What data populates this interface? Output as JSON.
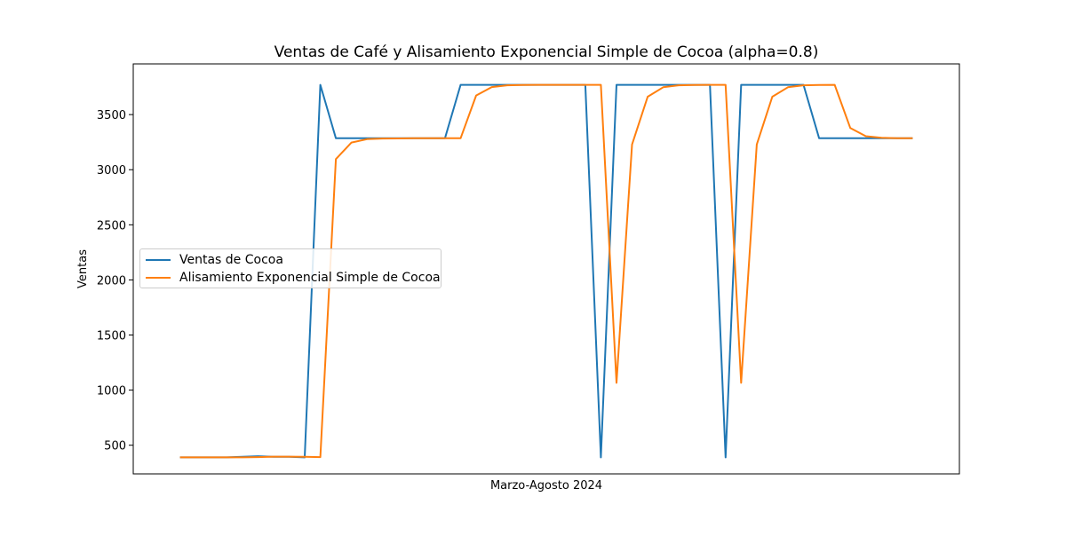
{
  "chart_data": {
    "type": "line",
    "title": "Ventas de Café y Alisamiento Exponencial Simple de Cocoa (alpha=0.8)",
    "xlabel": "Marzo-Agosto 2024",
    "ylabel": "Ventas",
    "x": [
      1,
      2,
      3,
      4,
      5,
      6,
      7,
      8,
      9,
      10,
      11,
      12,
      13,
      14,
      15,
      16,
      17,
      18,
      19,
      20,
      21,
      22,
      23,
      24,
      25,
      26,
      27,
      28,
      29,
      30,
      31,
      32,
      33,
      34,
      35,
      36,
      37,
      38,
      39,
      40,
      41,
      42,
      43,
      44,
      45,
      46,
      47,
      48
    ],
    "xlim": [
      -2,
      51
    ],
    "ylim": [
      240,
      3960
    ],
    "yticks": [
      500,
      1000,
      1500,
      2000,
      2500,
      3000,
      3500
    ],
    "grid": false,
    "legend_position": "center-left",
    "series": [
      {
        "name": "Ventas de Cocoa",
        "color": "#1f77b4",
        "values": [
          390,
          390,
          390,
          390,
          395,
          400,
          395,
          395,
          390,
          3770,
          3285,
          3285,
          3285,
          3285,
          3285,
          3285,
          3285,
          3285,
          3770,
          3770,
          3770,
          3770,
          3770,
          3770,
          3770,
          3770,
          3770,
          390,
          3770,
          3770,
          3770,
          3770,
          3770,
          3770,
          3770,
          390,
          3770,
          3770,
          3770,
          3770,
          3770,
          3285,
          3285,
          3285,
          3285,
          3285,
          3285,
          3285
        ]
      },
      {
        "name": "Alisamiento Exponencial Simple de Cocoa",
        "color": "#ff7f0e",
        "values": [
          390,
          390,
          390,
          390,
          390,
          392,
          396,
          396,
          395,
          392,
          3096,
          3247,
          3277,
          3283,
          3284,
          3285,
          3285,
          3285,
          3285,
          3673,
          3750,
          3766,
          3769,
          3770,
          3770,
          3770,
          3770,
          3770,
          1066,
          3229,
          3662,
          3748,
          3766,
          3769,
          3770,
          3770,
          1066,
          3229,
          3662,
          3748,
          3766,
          3769,
          3770,
          3378,
          3304,
          3289,
          3286,
          3285
        ]
      }
    ]
  }
}
